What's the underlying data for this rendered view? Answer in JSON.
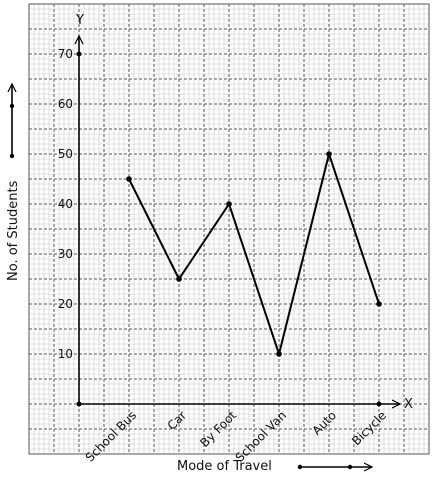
{
  "chart_data": {
    "type": "line",
    "categories": [
      "School Bus",
      "Car",
      "By Foot",
      "School Van",
      "Auto",
      "Bicycle"
    ],
    "values": [
      45,
      25,
      40,
      10,
      50,
      20
    ],
    "title": "",
    "xlabel": "Mode of Travel",
    "ylabel": "No. of Students",
    "x_axis_letter": "X",
    "y_axis_letter": "Y",
    "ylim": [
      0,
      70
    ],
    "yticks": [
      10,
      20,
      30,
      40,
      50,
      60,
      70
    ],
    "grid": true,
    "colors": {
      "line": "#000000",
      "grid_minor": "#c8c8c8",
      "grid_major": "#555555",
      "background": "#ffffff"
    }
  }
}
